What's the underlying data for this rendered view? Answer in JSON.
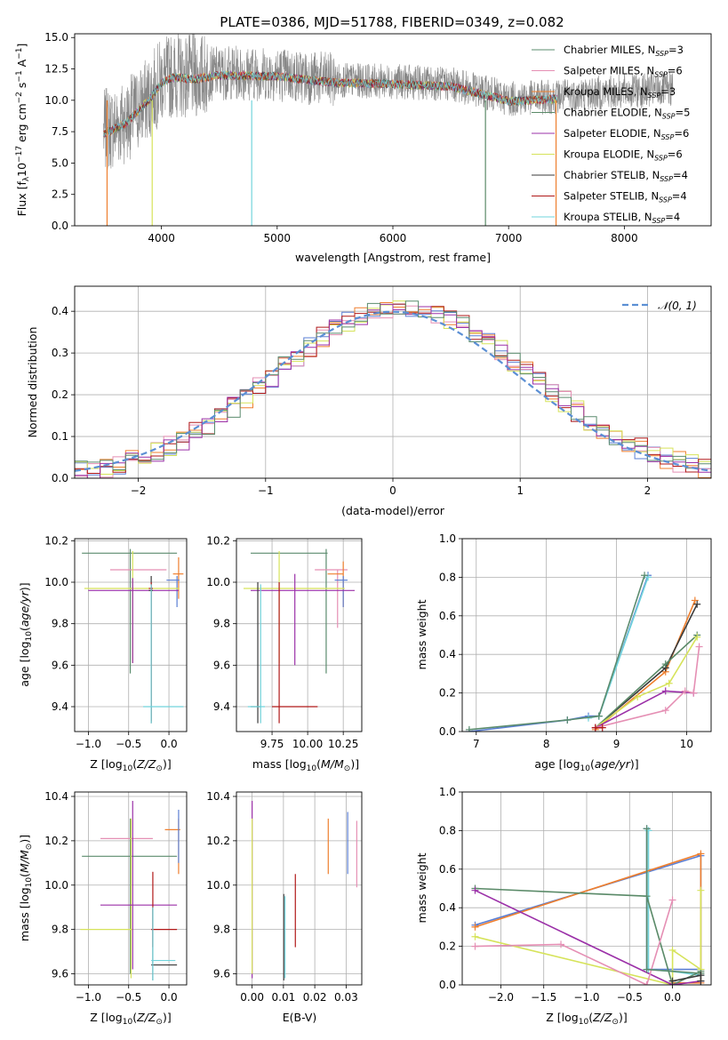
{
  "title": "PLATE=0386, MJD=51788, FIBERID=0349, z=0.082",
  "models": [
    {
      "name": "Chabrier MILES",
      "nssp": "3",
      "color": "#5b8c6e"
    },
    {
      "name": "Salpeter MILES",
      "nssp": "6",
      "color": "#e58fb4"
    },
    {
      "name": "Kroupa MILES",
      "nssp": "3",
      "color": "#ef7f2e"
    },
    {
      "name": "Chabrier ELODIE",
      "nssp": "5",
      "color": "#5a8a68"
    },
    {
      "name": "Salpeter ELODIE",
      "nssp": "6",
      "color": "#9b30a8"
    },
    {
      "name": "Kroupa ELODIE",
      "nssp": "6",
      "color": "#d6e35a"
    },
    {
      "name": "Chabrier STELIB",
      "nssp": "4",
      "color": "#3a3a3a"
    },
    {
      "name": "Salpeter STELIB",
      "nssp": "4",
      "color": "#b01818"
    },
    {
      "name": "Kroupa STELIB",
      "nssp": "4",
      "color": "#72d4dc"
    }
  ],
  "panels": {
    "spectrum": {
      "xlabel": "wavelength [Angstrom, rest frame]",
      "ylabel": "Flux [f_λ 10^-17 erg cm^-2 s^-1 A^-1]"
    },
    "residuals": {
      "xlabel": "(data-model)/error",
      "ylabel": "Normed distribution",
      "legend": "𝒩(0, 1)"
    },
    "z_age": {
      "xlabel": "Z [log10(Z/Z⊙)]",
      "ylabel": "age  [log10(age/yr)]"
    },
    "mass_age": {
      "xlabel": "mass [log10(M/M⊙)]"
    },
    "age_weight": {
      "xlabel": "age  [log10(age/yr)]",
      "ylabel": "mass weight"
    },
    "z_mass": {
      "xlabel": "Z [log10(Z/Z⊙)]",
      "ylabel": "mass [log10(M/M⊙)]"
    },
    "ebv_mass": {
      "xlabel": "E(B-V)"
    },
    "z_weight": {
      "xlabel": "Z [log10(Z/Z⊙)]",
      "ylabel": "mass weight"
    }
  },
  "chart_data": [
    {
      "type": "line",
      "id": "spectrum",
      "title": "PLATE=0386, MJD=51788, FIBERID=0349, z=0.082",
      "xlim": [
        3250,
        8750
      ],
      "ylim": [
        0,
        15.3
      ],
      "xticks": [
        4000,
        5000,
        6000,
        7000,
        8000
      ],
      "yticks": [
        0.0,
        2.5,
        5.0,
        7.5,
        10.0,
        12.5,
        15.0
      ],
      "xtick_labels": [
        "4000",
        "5000",
        "6000",
        "7000",
        "8000"
      ],
      "ytick_labels": [
        "0.0",
        "2.5",
        "5.0",
        "7.5",
        "10.0",
        "12.5",
        "15.0"
      ],
      "data_range": [
        3500,
        8420
      ],
      "continuum": [
        [
          3500,
          7.5
        ],
        [
          3700,
          8.4
        ],
        [
          3900,
          10.3
        ],
        [
          4000,
          11.6
        ],
        [
          4100,
          12.0
        ],
        [
          4300,
          11.9
        ],
        [
          4500,
          12.2
        ],
        [
          5000,
          12.1
        ],
        [
          5500,
          11.6
        ],
        [
          6000,
          11.5
        ],
        [
          6500,
          11.3
        ],
        [
          6900,
          10.4
        ],
        [
          7000,
          10.1
        ],
        [
          7400,
          10.3
        ],
        [
          7800,
          10.6
        ],
        [
          8420,
          10.9
        ]
      ],
      "legend_position": "upper right"
    },
    {
      "type": "histogram",
      "id": "residuals",
      "xlim": [
        -2.5,
        2.5
      ],
      "ylim": [
        0,
        0.46
      ],
      "xticks": [
        -2,
        -1,
        0,
        1,
        2
      ],
      "yticks": [
        0.0,
        0.1,
        0.2,
        0.3,
        0.4
      ],
      "xtick_labels": [
        "−2",
        "−1",
        "0",
        "1",
        "2"
      ],
      "ytick_labels": [
        "0.0",
        "0.1",
        "0.2",
        "0.3",
        "0.4"
      ],
      "bin_width": 0.1,
      "series_names": [
        "Kroupa STELIB",
        "Kroupa MILES",
        "Salpeter MILES",
        "Kroupa ELODIE",
        "Salpeter STELIB",
        "Salpeter ELODIE",
        "Chabrier MILES"
      ],
      "series_colors": [
        "#5b7fd4",
        "#ef7f2e",
        "#e58fb4",
        "#d6e35a",
        "#b01818",
        "#9b30a8",
        "#5b8c6e"
      ],
      "legend": "𝒩(0, 1)",
      "legend_position": "upper right"
    },
    {
      "type": "errorbar",
      "id": "z_age",
      "xlim": [
        -1.17,
        0.22
      ],
      "ylim": [
        9.28,
        10.21
      ],
      "xticks": [
        -1.0,
        -0.5,
        0.0
      ],
      "yticks": [
        9.4,
        9.6,
        9.8,
        10.0,
        10.2
      ],
      "xtick_labels": [
        "−1.0",
        "−0.5",
        "0.0"
      ],
      "ytick_labels": [
        "9.4",
        "9.6",
        "9.8",
        "10.0",
        "10.2"
      ],
      "points": [
        {
          "x": -0.48,
          "xlo": -1.08,
          "xhi": 0.1,
          "y": 10.14,
          "ylo": 9.56,
          "yhi": 10.16,
          "color": "#5b8c6e"
        },
        {
          "x": -0.2,
          "xlo": -0.73,
          "xhi": -0.03,
          "y": 10.06,
          "ylo": 10.06,
          "yhi": 10.06,
          "color": "#e58fb4"
        },
        {
          "x": 0.12,
          "xlo": 0.05,
          "xhi": 0.18,
          "y": 10.04,
          "ylo": 9.92,
          "yhi": 10.12,
          "color": "#ef7f2e"
        },
        {
          "x": 0.1,
          "xlo": -0.03,
          "xhi": 0.13,
          "y": 10.01,
          "ylo": 9.88,
          "yhi": 10.03,
          "color": "#5b7fd4"
        },
        {
          "x": -0.45,
          "xlo": -1.05,
          "xhi": 0.13,
          "y": 9.97,
          "ylo": 9.61,
          "yhi": 10.15,
          "color": "#d6e35a"
        },
        {
          "x": -0.45,
          "xlo": -1.0,
          "xhi": 0.12,
          "y": 9.96,
          "ylo": 9.61,
          "yhi": 10.02,
          "color": "#9b30a8"
        },
        {
          "x": -0.22,
          "xlo": -0.25,
          "xhi": -0.2,
          "y": 9.96,
          "ylo": 9.32,
          "yhi": 10.03,
          "color": "#3a3a3a"
        },
        {
          "x": -0.22,
          "xlo": -0.25,
          "xhi": -0.2,
          "y": 9.97,
          "ylo": 9.33,
          "yhi": 10.0,
          "color": "#b01818"
        },
        {
          "x": -0.22,
          "xlo": -0.32,
          "xhi": 0.18,
          "y": 9.4,
          "ylo": 9.32,
          "yhi": 9.99,
          "color": "#72d4dc"
        }
      ]
    },
    {
      "type": "errorbar",
      "id": "mass_age",
      "xlim": [
        9.5,
        10.38
      ],
      "ylim": [
        9.28,
        10.21
      ],
      "xticks": [
        9.75,
        10.0,
        10.25
      ],
      "yticks": [
        9.4,
        9.6,
        9.8,
        10.0,
        10.2
      ],
      "xtick_labels": [
        "9.75",
        "10.00",
        "10.25"
      ],
      "ytick_labels": [
        "9.4",
        "9.6",
        "9.8",
        "10.0",
        "10.2"
      ],
      "points": [
        {
          "x": 10.13,
          "xlo": 9.6,
          "xhi": 10.14,
          "y": 10.14,
          "ylo": 9.56,
          "yhi": 10.16,
          "color": "#5b8c6e"
        },
        {
          "x": 10.21,
          "xlo": 10.05,
          "xhi": 10.28,
          "y": 10.06,
          "ylo": 9.78,
          "yhi": 10.06,
          "color": "#e58fb4"
        },
        {
          "x": 10.25,
          "xlo": 10.14,
          "xhi": 10.25,
          "y": 10.04,
          "ylo": 9.88,
          "yhi": 10.1,
          "color": "#ef7f2e"
        },
        {
          "x": 10.25,
          "xlo": 10.19,
          "xhi": 10.28,
          "y": 10.01,
          "ylo": 9.88,
          "yhi": 10.03,
          "color": "#5b7fd4"
        },
        {
          "x": 9.8,
          "xlo": 9.55,
          "xhi": 10.26,
          "y": 9.97,
          "ylo": 9.61,
          "yhi": 10.15,
          "color": "#d6e35a"
        },
        {
          "x": 9.91,
          "xlo": 9.6,
          "xhi": 10.33,
          "y": 9.96,
          "ylo": 9.6,
          "yhi": 10.04,
          "color": "#9b30a8"
        },
        {
          "x": 9.65,
          "xlo": 9.6,
          "xhi": 9.67,
          "y": 9.4,
          "ylo": 9.32,
          "yhi": 10.0,
          "color": "#3a3a3a"
        },
        {
          "x": 9.8,
          "xlo": 9.75,
          "xhi": 10.07,
          "y": 9.4,
          "ylo": 9.32,
          "yhi": 10.0,
          "color": "#b01818"
        },
        {
          "x": 9.67,
          "xlo": 9.58,
          "xhi": 9.7,
          "y": 9.4,
          "ylo": 9.32,
          "yhi": 9.99,
          "color": "#72d4dc"
        }
      ]
    },
    {
      "type": "line",
      "id": "age_weight",
      "xlim": [
        6.8,
        10.35
      ],
      "ylim": [
        0,
        1
      ],
      "xticks": [
        7,
        8,
        9,
        10
      ],
      "yticks": [
        0.0,
        0.2,
        0.4,
        0.6,
        0.8,
        1.0
      ],
      "xtick_labels": [
        "7",
        "8",
        "9",
        "10"
      ],
      "ytick_labels": [
        "0.0",
        "0.2",
        "0.4",
        "0.6",
        "0.8",
        "1.0"
      ],
      "series": [
        {
          "name": "Kroupa STELIB",
          "color": "#5b7fd4",
          "x": [
            6.9,
            8.3,
            8.6,
            8.75,
            9.45
          ],
          "y": [
            0.0,
            0.06,
            0.08,
            0.08,
            0.81
          ]
        },
        {
          "name": "Kroupa STELIB 2",
          "color": "#72d4dc",
          "x": [
            8.6,
            8.75,
            9.45
          ],
          "y": [
            0.07,
            0.08,
            0.8
          ]
        },
        {
          "name": "Chabrier MILES",
          "color": "#5b8c6e",
          "x": [
            6.9,
            8.3,
            8.75,
            9.4
          ],
          "y": [
            0.01,
            0.06,
            0.08,
            0.81
          ]
        },
        {
          "name": "Kroupa MILES",
          "color": "#ef7f2e",
          "x": [
            8.7,
            9.7,
            10.12
          ],
          "y": [
            0.01,
            0.31,
            0.68
          ]
        },
        {
          "name": "Chabrier STELIB",
          "color": "#3a3a3a",
          "x": [
            8.7,
            9.7,
            10.15
          ],
          "y": [
            0.02,
            0.33,
            0.66
          ]
        },
        {
          "name": "Chabrier ELODIE",
          "color": "#5a8a68",
          "x": [
            8.7,
            9.7,
            10.15
          ],
          "y": [
            0.02,
            0.35,
            0.5
          ]
        },
        {
          "name": "Kroupa ELODIE",
          "color": "#d6e35a",
          "x": [
            8.7,
            9.3,
            9.75,
            10.15
          ],
          "y": [
            0.02,
            0.18,
            0.25,
            0.49
          ]
        },
        {
          "name": "Salpeter ELODIE",
          "color": "#9b30a8",
          "x": [
            8.7,
            9.7,
            10.1
          ],
          "y": [
            0.02,
            0.21,
            0.2
          ]
        },
        {
          "name": "Salpeter MILES",
          "color": "#e58fb4",
          "x": [
            8.7,
            9.7,
            9.98,
            10.1,
            10.18
          ],
          "y": [
            0.02,
            0.11,
            0.21,
            0.2,
            0.44
          ]
        },
        {
          "name": "Salpeter STELIB",
          "color": "#b01818",
          "x": [
            8.7,
            8.8
          ],
          "y": [
            0.02,
            0.02
          ]
        }
      ]
    },
    {
      "type": "errorbar",
      "id": "z_mass",
      "xlim": [
        -1.17,
        0.22
      ],
      "ylim": [
        9.55,
        10.42
      ],
      "xticks": [
        -1.0,
        -0.5,
        0.0
      ],
      "yticks": [
        9.6,
        9.8,
        10.0,
        10.2,
        10.4
      ],
      "xtick_labels": [
        "−1.0",
        "−0.5",
        "0.0"
      ],
      "ytick_labels": [
        "9.6",
        "9.8",
        "10.0",
        "10.2",
        "10.4"
      ],
      "points": [
        {
          "x": -0.48,
          "xlo": -1.08,
          "xhi": 0.1,
          "y": 10.13,
          "ylo": 9.6,
          "yhi": 10.3,
          "color": "#5b8c6e"
        },
        {
          "x": -0.48,
          "xlo": -0.85,
          "xhi": -0.2,
          "y": 10.21,
          "ylo": 10.21,
          "yhi": 10.21,
          "color": "#e58fb4"
        },
        {
          "x": 0.12,
          "xlo": -0.05,
          "xhi": 0.14,
          "y": 10.25,
          "ylo": 10.05,
          "yhi": 10.3,
          "color": "#ef7f2e"
        },
        {
          "x": 0.12,
          "xlo": 0.12,
          "xhi": 0.12,
          "y": 10.3,
          "ylo": 10.1,
          "yhi": 10.34,
          "color": "#5b7fd4"
        },
        {
          "x": -0.47,
          "xlo": -1.1,
          "xhi": -0.45,
          "y": 9.8,
          "ylo": 9.58,
          "yhi": 10.3,
          "color": "#d6e35a"
        },
        {
          "x": -0.45,
          "xlo": -0.85,
          "xhi": 0.1,
          "y": 9.91,
          "ylo": 9.62,
          "yhi": 10.38,
          "color": "#9b30a8"
        },
        {
          "x": -0.2,
          "xlo": -0.22,
          "xhi": 0.1,
          "y": 9.64,
          "ylo": 9.57,
          "yhi": 9.9,
          "color": "#3a3a3a"
        },
        {
          "x": -0.2,
          "xlo": -0.22,
          "xhi": 0.1,
          "y": 9.8,
          "ylo": 9.72,
          "yhi": 10.06,
          "color": "#b01818"
        },
        {
          "x": -0.2,
          "xlo": -0.22,
          "xhi": 0.08,
          "y": 9.66,
          "ylo": 9.57,
          "yhi": 9.9,
          "color": "#72d4dc"
        }
      ]
    },
    {
      "type": "errorbar",
      "id": "ebv_mass",
      "xlim": [
        -0.005,
        0.035
      ],
      "ylim": [
        9.55,
        10.42
      ],
      "xticks": [
        0.0,
        0.01,
        0.02,
        0.03
      ],
      "yticks": [
        9.6,
        9.8,
        10.0,
        10.2,
        10.4
      ],
      "xtick_labels": [
        "0.00",
        "0.01",
        "0.02",
        "0.03"
      ],
      "ytick_labels": [
        "9.6",
        "9.8",
        "10.0",
        "10.2",
        "10.4"
      ],
      "points": [
        {
          "x": 0.0,
          "xlo": 0.0,
          "xhi": 0.0,
          "y": 9.8,
          "ylo": 9.58,
          "yhi": 10.38,
          "color": "#9b30a8"
        },
        {
          "x": 0.0,
          "xlo": 0.0,
          "xhi": 0.0,
          "y": 9.9,
          "ylo": 9.6,
          "yhi": 10.3,
          "color": "#d6e35a"
        },
        {
          "x": 0.0101,
          "xlo": 0.0101,
          "xhi": 0.0101,
          "y": 9.75,
          "ylo": 9.57,
          "yhi": 9.96,
          "color": "#3a3a3a"
        },
        {
          "x": 0.0105,
          "xlo": 0.0105,
          "xhi": 0.0105,
          "y": 9.75,
          "ylo": 9.58,
          "yhi": 9.95,
          "color": "#72d4dc"
        },
        {
          "x": 0.0138,
          "xlo": 0.0138,
          "xhi": 0.0138,
          "y": 9.9,
          "ylo": 9.72,
          "yhi": 10.05,
          "color": "#b01818"
        },
        {
          "x": 0.0243,
          "xlo": 0.0243,
          "xhi": 0.0243,
          "y": 10.2,
          "ylo": 10.05,
          "yhi": 10.3,
          "color": "#ef7f2e"
        },
        {
          "x": 0.0305,
          "xlo": 0.0305,
          "xhi": 0.0305,
          "y": 10.2,
          "ylo": 10.05,
          "yhi": 10.33,
          "color": "#5b7fd4"
        },
        {
          "x": 0.0334,
          "xlo": 0.0334,
          "xhi": 0.0334,
          "y": 10.15,
          "ylo": 9.99,
          "yhi": 10.29,
          "color": "#e58fb4"
        }
      ]
    },
    {
      "type": "line",
      "id": "z_weight",
      "xlim": [
        -2.45,
        0.45
      ],
      "ylim": [
        0,
        1
      ],
      "xticks": [
        -2.0,
        -1.5,
        -1.0,
        -0.5,
        0.0
      ],
      "yticks": [
        0.0,
        0.2,
        0.4,
        0.6,
        0.8,
        1.0
      ],
      "xtick_labels": [
        "−2.0",
        "−1.5",
        "−1.0",
        "−0.5",
        "0.0"
      ],
      "ytick_labels": [
        "0.0",
        "0.2",
        "0.4",
        "0.6",
        "0.8",
        "1.0"
      ],
      "series": [
        {
          "name": "Kroupa STELIB",
          "color": "#5b7fd4",
          "x": [
            -2.3,
            0.33,
            0.33,
            -0.3,
            -0.3
          ],
          "y": [
            0.31,
            0.67,
            0.08,
            0.08,
            0.81
          ]
        },
        {
          "name": "Kroupa STELIB 2",
          "color": "#72d4dc",
          "x": [
            -0.28,
            -0.28,
            0.0,
            0.33
          ],
          "y": [
            0.8,
            0.08,
            0.07,
            0.05
          ]
        },
        {
          "name": "Kroupa MILES",
          "color": "#ef7f2e",
          "x": [
            -2.3,
            0.33,
            0.33,
            0.0
          ],
          "y": [
            0.3,
            0.68,
            0.01,
            0.01
          ]
        },
        {
          "name": "Chabrier ELODIE",
          "color": "#5a8a68",
          "x": [
            -2.3,
            -0.3,
            0.0,
            0.33
          ],
          "y": [
            0.5,
            0.46,
            0.0,
            0.07
          ]
        },
        {
          "name": "Kroupa ELODIE",
          "color": "#d6e35a",
          "x": [
            -2.3,
            0.0,
            0.0,
            0.33,
            0.33
          ],
          "y": [
            0.25,
            0.0,
            0.18,
            0.08,
            0.49
          ]
        },
        {
          "name": "Salpeter ELODIE",
          "color": "#9b30a8",
          "x": [
            -2.3,
            0.0,
            0.33
          ],
          "y": [
            0.49,
            0.0,
            0.02
          ]
        },
        {
          "name": "Salpeter MILES",
          "color": "#e58fb4",
          "x": [
            -2.3,
            -1.3,
            -0.3,
            0.0
          ],
          "y": [
            0.2,
            0.21,
            0.0,
            0.44
          ]
        },
        {
          "name": "Chabrier MILES",
          "color": "#5b8c6e",
          "x": [
            -0.3,
            -0.3,
            0.33
          ],
          "y": [
            0.81,
            0.08,
            0.06
          ]
        },
        {
          "name": "Chabrier STELIB",
          "color": "#3a3a3a",
          "x": [
            0.0,
            0.33,
            0.33
          ],
          "y": [
            0.02,
            0.05,
            0.02
          ]
        }
      ]
    }
  ]
}
